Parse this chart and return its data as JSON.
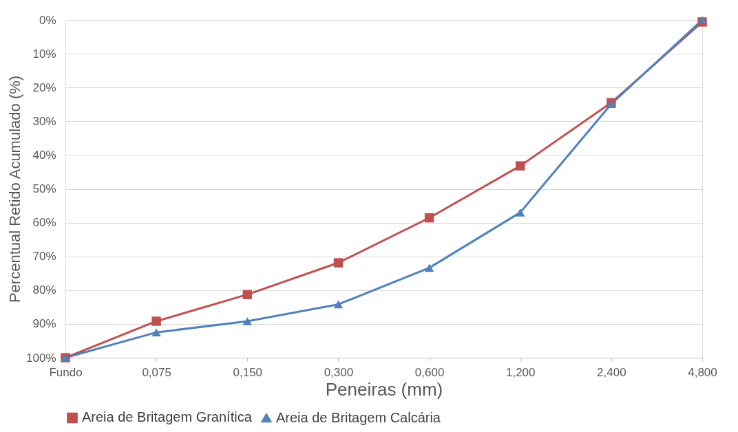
{
  "chart_data": {
    "type": "line",
    "xlabel": "Peneiras (mm)",
    "ylabel": "Percentual Retido Acumulado (%)",
    "categories": [
      "Fundo",
      "0,075",
      "0,150",
      "0,300",
      "0,600",
      "1,200",
      "2,400",
      "4,800"
    ],
    "series": [
      {
        "name": "Areia de Britagem Granítica",
        "color": "#c0504d",
        "marker": "square",
        "values": [
          100,
          89.2,
          81.3,
          71.9,
          58.6,
          43.2,
          24.5,
          0.6
        ]
      },
      {
        "name": "Areia de Britagem Calcária",
        "color": "#4f81bd",
        "marker": "triangle",
        "values": [
          100,
          92.5,
          89.2,
          84.2,
          73.4,
          57.0,
          24.9,
          0
        ]
      }
    ],
    "ylim": [
      100,
      0
    ],
    "yticks": [
      {
        "value": 0,
        "label": "0%"
      },
      {
        "value": 10,
        "label": "10%"
      },
      {
        "value": 20,
        "label": "20%"
      },
      {
        "value": 30,
        "label": "30%"
      },
      {
        "value": 40,
        "label": "40%"
      },
      {
        "value": 50,
        "label": "50%"
      },
      {
        "value": 60,
        "label": "60%"
      },
      {
        "value": 70,
        "label": "70%"
      },
      {
        "value": 80,
        "label": "80%"
      },
      {
        "value": 90,
        "label": "90%"
      },
      {
        "value": 100,
        "label": "100%"
      }
    ],
    "grid": "y",
    "legend": "bottom",
    "line_style": "solid"
  }
}
